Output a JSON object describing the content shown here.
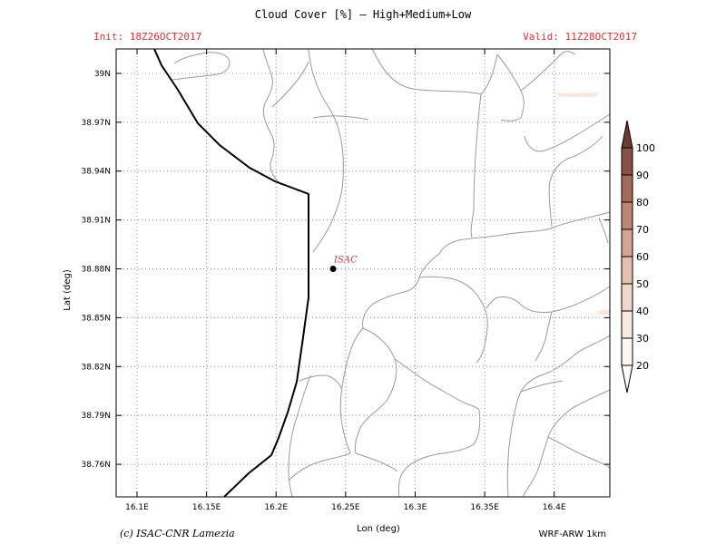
{
  "header": {
    "title": "Cloud Cover [%] — High+Medium+Low",
    "init": "Init: 18Z26OCT2017",
    "valid": "Valid: 11Z28OCT2017",
    "meta_color": "#e03030"
  },
  "axes": {
    "xlabel": "Lon (deg)",
    "ylabel": "Lat (deg)",
    "x_range": [
      16.085,
      16.44
    ],
    "y_range": [
      38.74,
      39.015
    ],
    "x_ticks": [
      {
        "value": 16.1,
        "label": "16.1E"
      },
      {
        "value": 16.15,
        "label": "16.15E"
      },
      {
        "value": 16.2,
        "label": "16.2E"
      },
      {
        "value": 16.25,
        "label": "16.25E"
      },
      {
        "value": 16.3,
        "label": "16.3E"
      },
      {
        "value": 16.35,
        "label": "16.35E"
      },
      {
        "value": 16.4,
        "label": "16.4E"
      }
    ],
    "y_ticks": [
      {
        "value": 39.0,
        "label": "39N"
      },
      {
        "value": 38.97,
        "label": "38.97N"
      },
      {
        "value": 38.94,
        "label": "38.94N"
      },
      {
        "value": 38.91,
        "label": "38.91N"
      },
      {
        "value": 38.88,
        "label": "38.88N"
      },
      {
        "value": 38.85,
        "label": "38.85N"
      },
      {
        "value": 38.82,
        "label": "38.82N"
      },
      {
        "value": 38.79,
        "label": "38.79N"
      },
      {
        "value": 38.76,
        "label": "38.76N"
      }
    ],
    "grid": true
  },
  "station": {
    "name": "ISAC",
    "lon": 16.241,
    "lat": 38.88,
    "label_color": "#e03030"
  },
  "colorbar": {
    "levels": [
      {
        "label": "20",
        "color": "#fdf6f1"
      },
      {
        "label": "30",
        "color": "#f8e9df"
      },
      {
        "label": "40",
        "color": "#f0d8c9"
      },
      {
        "label": "50",
        "color": "#e4c0ad"
      },
      {
        "label": "60",
        "color": "#d3a490"
      },
      {
        "label": "70",
        "color": "#bd8673"
      },
      {
        "label": "80",
        "color": "#a36b59"
      },
      {
        "label": "90",
        "color": "#875244"
      },
      {
        "label": "100",
        "color": "#6b3d31"
      }
    ],
    "low_color": "#ffffff"
  },
  "footer": {
    "credit": "(c) ISAC-CNR Lamezia",
    "model": "WRF-ARW 1km"
  }
}
